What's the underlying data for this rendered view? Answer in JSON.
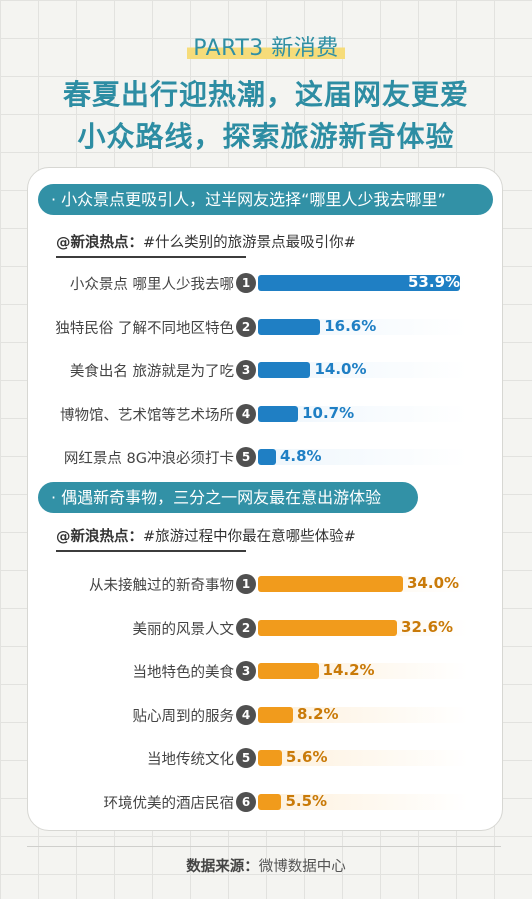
{
  "header": {
    "part": "PART3 新消费",
    "headline_line1": "春夏出行迎热潮，这届网友更爱",
    "headline_line2": "小众路线，探索旅游新奇体验"
  },
  "chart_data": [
    {
      "type": "bar",
      "title": "· 小众景点更吸引人，过半网友选择“哪里人少我去哪里”",
      "topic_label": "@新浪热点：",
      "topic_text": "#什么类别的旅游景点最吸引你#",
      "color": "#1f7fc4",
      "track_color": "#eef6fc",
      "categories": [
        "小众景点 哪里人少我去哪",
        "独特民俗 了解不同地区特色",
        "美食出名 旅游就是为了吃",
        "博物馆、艺术馆等艺术场所",
        "网红景点 8G冲浪必须打卡"
      ],
      "ranks": [
        "1",
        "2",
        "3",
        "4",
        "5"
      ],
      "values": [
        53.9,
        16.6,
        14.0,
        10.7,
        4.8
      ],
      "value_labels": [
        "53.9%",
        "16.6%",
        "14.0%",
        "10.7%",
        "4.8%"
      ],
      "xlim": [
        0,
        55
      ]
    },
    {
      "type": "bar",
      "title": "· 偶遇新奇事物，三分之一网友最在意出游体验",
      "topic_label": "@新浪热点：",
      "topic_text": "#旅游过程中你最在意哪些体验#",
      "color": "#f19b1c",
      "track_color": "#fdf0dc",
      "categories": [
        "从未接触过的新奇事物",
        "美丽的风景人文",
        "当地特色的美食",
        "贴心周到的服务",
        "当地传统文化",
        "环境优美的酒店民宿"
      ],
      "ranks": [
        "1",
        "2",
        "3",
        "4",
        "5",
        "6"
      ],
      "values": [
        34.0,
        32.6,
        14.2,
        8.2,
        5.6,
        5.5
      ],
      "value_labels": [
        "34.0%",
        "32.6%",
        "14.2%",
        "8.2%",
        "5.6%",
        "5.5%"
      ],
      "xlim": [
        0,
        49
      ]
    }
  ],
  "footer": {
    "source_label": "数据来源：",
    "source_text": "微博数据中心"
  }
}
